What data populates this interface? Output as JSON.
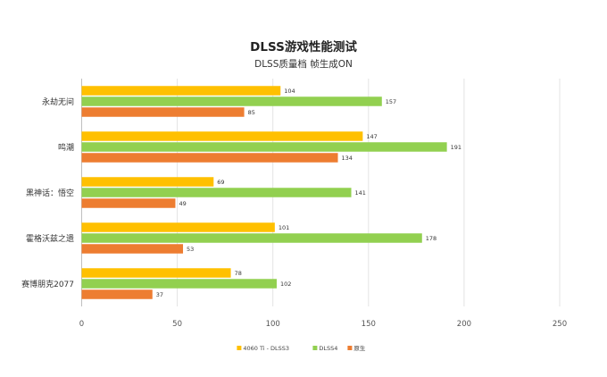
{
  "chart_data": {
    "type": "bar",
    "orientation": "horizontal",
    "title": "DLSS游戏性能测试",
    "subtitle": "DLSS质量档 帧生成ON",
    "categories": [
      "永劫无间",
      "鸣潮",
      "黑神话：悟空",
      "霍格沃兹之遗",
      "赛博朋克2077"
    ],
    "series": [
      {
        "name": "4060 Ti - DLSS3",
        "color": "#FFC000",
        "values": [
          104,
          147,
          69,
          101,
          78
        ]
      },
      {
        "name": "DLSS4",
        "color": "#92D050",
        "values": [
          157,
          191,
          141,
          178,
          102
        ]
      },
      {
        "name": "原生",
        "color": "#ED7D31",
        "values": [
          85,
          134,
          49,
          53,
          37
        ]
      }
    ],
    "xlim": [
      0,
      250
    ],
    "xticks": [
      0,
      50,
      100,
      150,
      200,
      250
    ],
    "grid": true,
    "legend": "bottom",
    "xlabel": "",
    "ylabel": ""
  }
}
